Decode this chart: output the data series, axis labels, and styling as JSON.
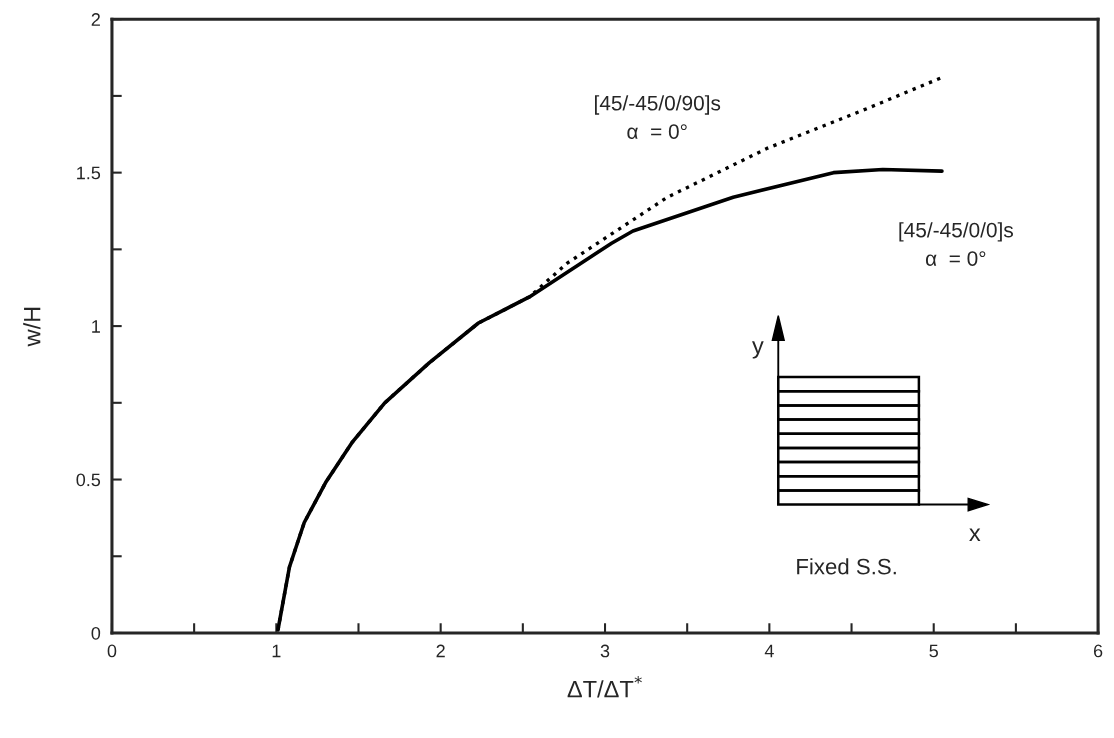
{
  "chart_data": {
    "type": "line",
    "xlabel": "ΔT/ΔT$^{*}$",
    "ylabel": "w/H",
    "xlim": [
      0,
      6
    ],
    "ylim": [
      0,
      2
    ],
    "xticks": [
      0,
      {
        "value": 0.5,
        "label": null
      },
      1,
      {
        "value": 1.5,
        "label": null
      },
      2,
      {
        "value": 2.5,
        "label": null
      },
      3,
      {
        "value": 3.5,
        "label": null
      },
      4,
      {
        "value": 4.5,
        "label": null
      },
      5,
      {
        "value": 5.5,
        "label": null
      },
      6
    ],
    "yticks": [
      0,
      {
        "value": 0.25,
        "label": null
      },
      0.5,
      {
        "value": 0.75,
        "label": null
      },
      1,
      {
        "value": 1.25,
        "label": null
      },
      1.5,
      {
        "value": 1.75,
        "label": null
      },
      2
    ],
    "grid": false,
    "legend": false,
    "series": [
      {
        "name": "[45/-45/0/90]s\nα  = 0°",
        "color": "#000000",
        "line_style": "dotted",
        "x": [
          1.01,
          1.08,
          1.17,
          1.3,
          1.46,
          1.66,
          1.93,
          2.23,
          2.54,
          2.77,
          3.38,
          3.99,
          4.6,
          5.05
        ],
        "values": [
          0.01,
          0.215,
          0.36,
          0.49,
          0.62,
          0.75,
          0.88,
          1.01,
          1.095,
          1.205,
          1.42,
          1.58,
          1.71,
          1.81
        ]
      },
      {
        "name": "[45/-45/0/0]s\nα  = 0°",
        "color": "#000000",
        "line_style": "solid",
        "x": [
          1.01,
          1.08,
          1.17,
          1.3,
          1.46,
          1.66,
          1.93,
          2.23,
          2.54,
          2.84,
          3.04,
          3.17,
          3.78,
          4.39,
          4.69,
          5.05
        ],
        "values": [
          0.01,
          0.215,
          0.36,
          0.49,
          0.62,
          0.75,
          0.88,
          1.01,
          1.095,
          1.2,
          1.27,
          1.31,
          1.42,
          1.5,
          1.51,
          1.505
        ]
      }
    ],
    "annotations": [
      "y",
      "x",
      "Fixed S.S."
    ]
  }
}
